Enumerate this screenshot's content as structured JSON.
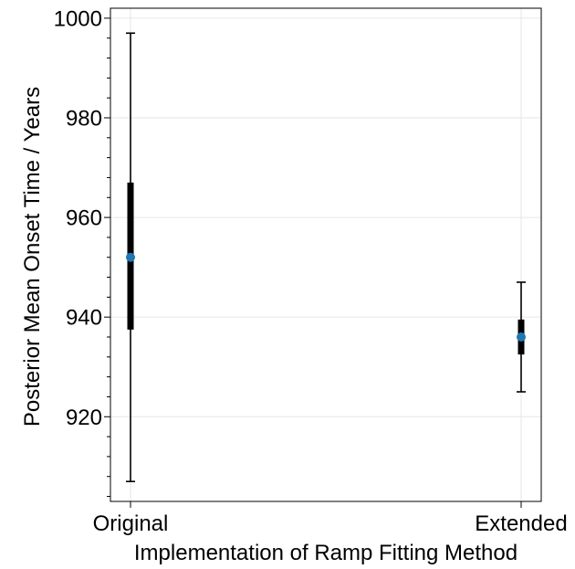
{
  "chart_data": {
    "type": "errorbar",
    "title": "",
    "xlabel": "Implementation of Ramp Fitting Method",
    "ylabel": "Posterior Mean Onset Time / Years",
    "categories": [
      "Original",
      "Extended"
    ],
    "ylim": [
      903,
      1002
    ],
    "yticks": [
      920,
      940,
      960,
      980,
      1000
    ],
    "grid": true,
    "marker_color": "#1f77b4",
    "points": [
      {
        "category": "Original",
        "mean": 952,
        "inner_low": 937.5,
        "inner_high": 967,
        "outer_low": 907,
        "outer_high": 997
      },
      {
        "category": "Extended",
        "mean": 936,
        "inner_low": 932.5,
        "inner_high": 939.5,
        "outer_low": 925,
        "outer_high": 947
      }
    ]
  }
}
